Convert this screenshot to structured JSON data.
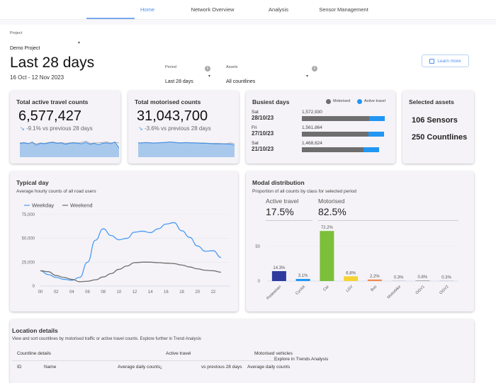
{
  "nav": {
    "tabs": [
      {
        "label": "Home",
        "active": true
      },
      {
        "label": "Network Overview"
      },
      {
        "label": "Analysis"
      },
      {
        "label": "Sensor Management"
      }
    ]
  },
  "project": {
    "label": "Project",
    "value": "Demo Project"
  },
  "header": {
    "title": "Last 28 days",
    "date_range": "16 Oct - 12 Nov 2023",
    "learn_more": "Learn more"
  },
  "filters": {
    "period": {
      "label": "Period",
      "value": "Last 28 days"
    },
    "assets": {
      "label": "Assets",
      "value": "All countlines"
    }
  },
  "colors": {
    "accent": "#4a8ef0",
    "motorised": "#6e6e6e",
    "active_travel": "#2196f3"
  },
  "kpis": [
    {
      "title": "Total active travel counts",
      "value": "6,577,427",
      "trend": "-9.1% vs previous 28 days",
      "trend_icon": "trending-down-icon",
      "spark": [
        60,
        62,
        58,
        66,
        52,
        60,
        58,
        62,
        64,
        60,
        62,
        56,
        60,
        62,
        60,
        58,
        64,
        56,
        60,
        54,
        60,
        62,
        58,
        66,
        40
      ],
      "spark_prev": [
        62,
        64,
        60,
        62,
        58,
        62,
        60,
        64,
        66,
        62,
        64,
        60,
        62,
        64,
        62,
        64,
        70,
        60,
        62,
        62,
        64,
        66,
        62,
        64,
        62
      ]
    },
    {
      "title": "Total motorised counts",
      "value": "31,043,700",
      "trend": "-3.6% vs previous 28 days",
      "trend_icon": "trending-down-icon",
      "spark": [
        62,
        62,
        63,
        62,
        61,
        62,
        63,
        64,
        66,
        64,
        62,
        62,
        63,
        62,
        62,
        61,
        60,
        60,
        59,
        58,
        58,
        58,
        57,
        57,
        52
      ],
      "spark_prev": [
        62,
        63,
        64,
        63,
        62,
        63,
        64,
        65,
        66,
        65,
        63,
        63,
        64,
        63,
        63,
        62,
        62,
        61,
        60,
        60,
        60,
        59,
        59,
        62,
        58
      ]
    }
  ],
  "busiest": {
    "title": "Busiest days",
    "legend": [
      "Motorised",
      "Active travel"
    ],
    "max": 1572930,
    "items": [
      {
        "day": "Sat",
        "date": "28/10/23",
        "total": "1,572,930",
        "value": 1572930,
        "motorised_share": 0.81
      },
      {
        "day": "Fri",
        "date": "27/10/23",
        "total": "1,561,864",
        "value": 1561864,
        "motorised_share": 0.81
      },
      {
        "day": "Sat",
        "date": "21/10/23",
        "total": "1,468,624",
        "value": 1468624,
        "motorised_share": 0.8
      }
    ]
  },
  "assets": {
    "title": "Selected assets",
    "sensors": "106 Sensors",
    "countlines": "250 Countlines"
  },
  "chart_data": [
    {
      "type": "line",
      "title": "Typical day",
      "subtitle": "Average hourly counts of all road users",
      "legend_position": "top-left",
      "ylim": [
        0,
        75000
      ],
      "y_ticks": [
        "0",
        "25,000",
        "50,000",
        "75,000"
      ],
      "x": [
        "00",
        "01",
        "02",
        "03",
        "04",
        "05",
        "06",
        "07",
        "08",
        "09",
        "10",
        "11",
        "12",
        "13",
        "14",
        "15",
        "16",
        "17",
        "18",
        "19",
        "20",
        "21",
        "22",
        "23"
      ],
      "x_ticks": [
        "00",
        "02",
        "04",
        "06",
        "08",
        "10",
        "12",
        "14",
        "16",
        "18",
        "20",
        "22"
      ],
      "series": [
        {
          "name": "Weekday",
          "color": "#4a9af5",
          "values": [
            16000,
            12000,
            9000,
            7000,
            6000,
            9000,
            25000,
            48000,
            60000,
            53000,
            48500,
            50000,
            56500,
            57500,
            56000,
            60000,
            65000,
            66500,
            58000,
            51000,
            42000,
            36500,
            37000,
            30000
          ]
        },
        {
          "name": "Weekend",
          "color": "#6e6e6e",
          "values": [
            16000,
            15000,
            11000,
            9000,
            7000,
            4500,
            5000,
            6500,
            9500,
            13000,
            17500,
            21000,
            24500,
            25000,
            25000,
            24500,
            24000,
            23500,
            22000,
            20000,
            18000,
            16500,
            16000,
            14500
          ]
        }
      ]
    },
    {
      "type": "bar",
      "title": "Modal distribution",
      "subtitle": "Proportion of all counts by class for selected period",
      "ylim": [
        0,
        75
      ],
      "y_ticks": [
        "0",
        "50"
      ],
      "summary": [
        {
          "label": "Active travel",
          "value": "17.5%"
        },
        {
          "label": "Motorised",
          "value": "82.5%"
        }
      ],
      "categories": [
        "Pedestrian",
        "Cyclist",
        "Car",
        "LGV",
        "Bus",
        "Motorbike",
        "OGV1",
        "OGV2"
      ],
      "values": [
        14.3,
        3.1,
        72.2,
        6.8,
        2.2,
        0.3,
        0.8,
        0.3
      ],
      "labels": [
        "14.3%",
        "3.1%",
        "72.2%",
        "6.8%",
        "2.2%",
        "0.3%",
        "0.8%",
        "0.3%"
      ],
      "colors": [
        "#2e3a9e",
        "#2196f3",
        "#7cbf3a",
        "#f5d432",
        "#f08a4b",
        "#999",
        "#999",
        "#999"
      ]
    }
  ],
  "location": {
    "title": "Location details",
    "subtitle": "View and sort countlines by motorised traffic or active travel counts. Explore further in Trend Analysis",
    "groups": [
      "Countline details",
      "Active travel",
      "Motorised vehicles",
      "Explore in Trends Analysis"
    ],
    "columns": [
      "ID",
      "Name",
      "Average daily counts",
      "vs previous 28 days",
      "Average daily counts"
    ]
  }
}
